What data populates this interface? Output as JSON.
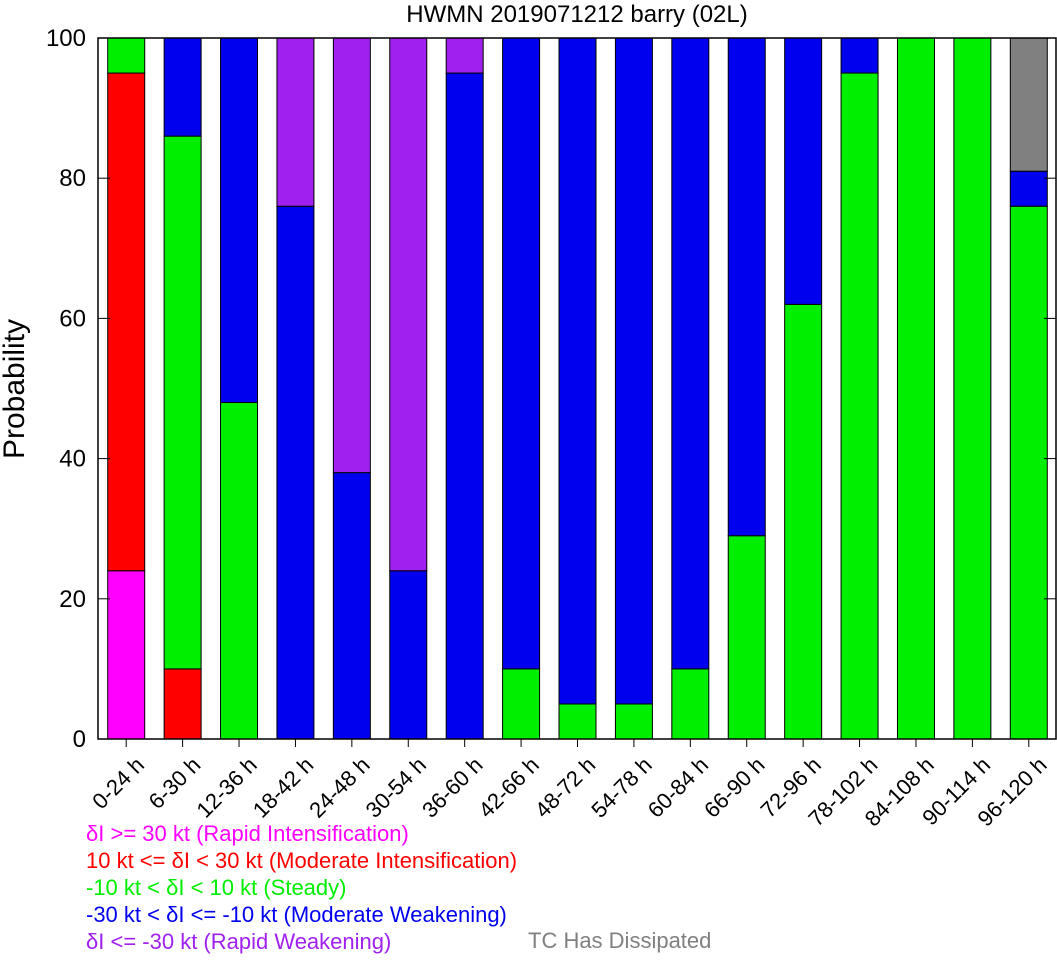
{
  "chart_data": {
    "type": "bar",
    "stacked": true,
    "title": "HWMN 2019071212 barry (02L)",
    "ylabel": "Probability",
    "xlabel": "",
    "ylim": [
      0,
      100
    ],
    "yticks": [
      0,
      20,
      40,
      60,
      80,
      100
    ],
    "grid": false,
    "categories": [
      "0-24 h",
      "6-30 h",
      "12-36 h",
      "18-42 h",
      "24-48 h",
      "30-54 h",
      "36-60 h",
      "42-66 h",
      "48-72 h",
      "54-78 h",
      "60-84 h",
      "66-90 h",
      "72-96 h",
      "78-102 h",
      "84-108 h",
      "90-114 h",
      "96-120 h"
    ],
    "series": [
      {
        "name": "δI >= 30 kt (Rapid Intensification)",
        "color": "#ff00ff",
        "values": [
          24,
          0,
          0,
          0,
          0,
          0,
          0,
          0,
          0,
          0,
          0,
          0,
          0,
          0,
          0,
          0,
          0
        ]
      },
      {
        "name": "10 kt <= δI < 30 kt (Moderate Intensification)",
        "color": "#ff0000",
        "values": [
          71,
          10,
          0,
          0,
          0,
          0,
          0,
          0,
          0,
          0,
          0,
          0,
          0,
          0,
          0,
          0,
          0
        ]
      },
      {
        "name": "-10 kt < δI < 10 kt (Steady)",
        "color": "#00ee00",
        "values": [
          5,
          76,
          48,
          0,
          0,
          0,
          0,
          10,
          5,
          5,
          10,
          29,
          62,
          95,
          100,
          100,
          76
        ]
      },
      {
        "name": "-30 kt < δI <= -10 kt (Moderate Weakening)",
        "color": "#0000ee",
        "values": [
          0,
          14,
          52,
          76,
          38,
          24,
          95,
          90,
          95,
          95,
          90,
          71,
          38,
          5,
          0,
          0,
          5
        ]
      },
      {
        "name": "δI <= -30 kt (Rapid Weakening)",
        "color": "#a020f0",
        "values": [
          0,
          0,
          0,
          24,
          62,
          76,
          5,
          0,
          0,
          0,
          0,
          0,
          0,
          0,
          0,
          0,
          0
        ]
      },
      {
        "name": "TC Has Dissipated",
        "color": "#808080",
        "values": [
          0,
          0,
          0,
          0,
          0,
          0,
          0,
          0,
          0,
          0,
          0,
          0,
          0,
          0,
          0,
          0,
          19
        ]
      }
    ]
  },
  "legend_lines": [
    {
      "text": "δI >= 30 kt (Rapid Intensification)",
      "color": "#ff00ff"
    },
    {
      "text": "10 kt <= δI < 30 kt (Moderate Intensification)",
      "color": "#ff0000"
    },
    {
      "text": "-10 kt < δI < 10 kt (Steady)",
      "color": "#00ee00"
    },
    {
      "text": "-30 kt < δI <= -10 kt (Moderate Weakening)",
      "color": "#0000ee"
    },
    {
      "text": "δI <= -30 kt (Rapid Weakening)",
      "color": "#a020f0"
    }
  ],
  "dissipated_label": "TC Has Dissipated"
}
